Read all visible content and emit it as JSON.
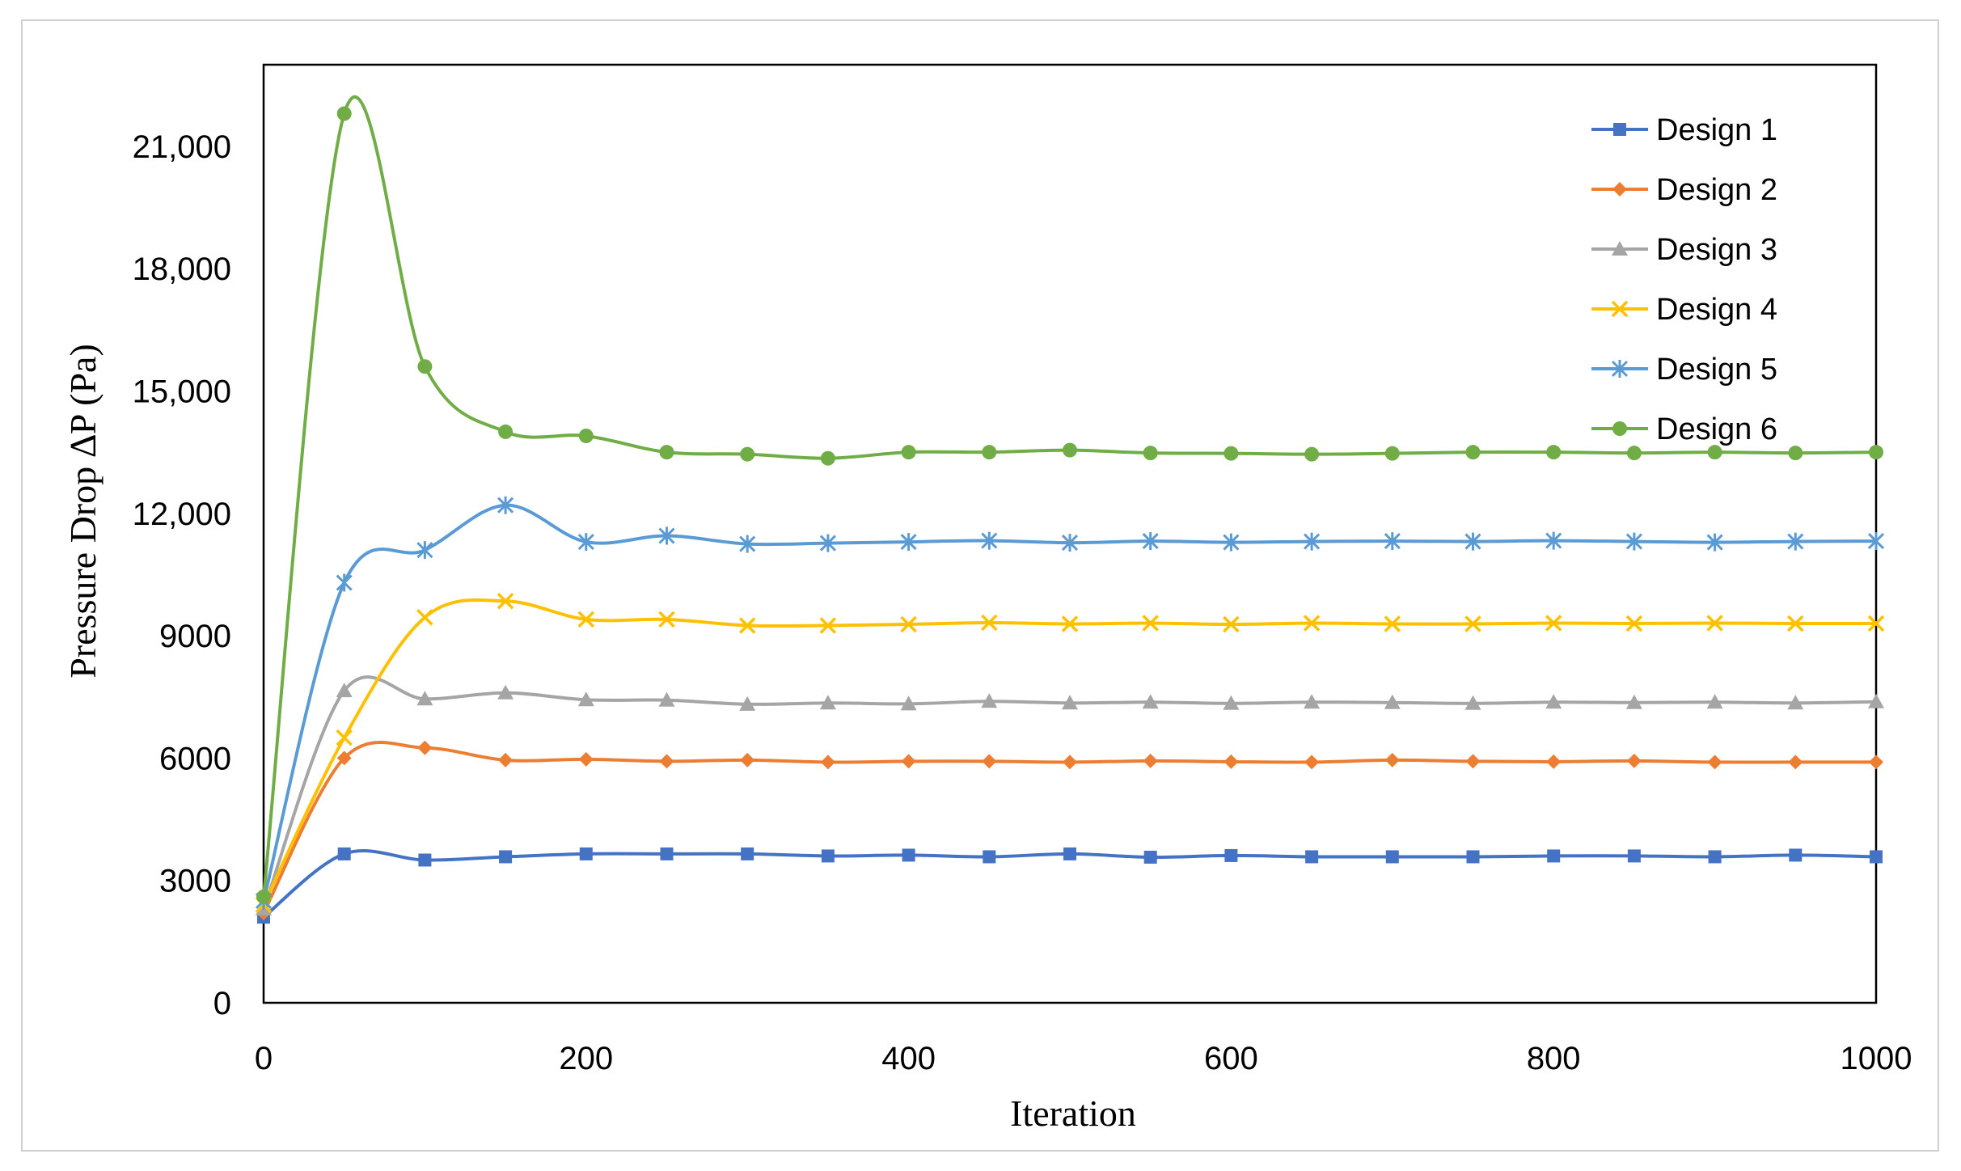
{
  "chart_data": {
    "type": "line",
    "title": "",
    "xlabel": "Iteration",
    "ylabel": "Pressure Drop ∆P (Pa)",
    "xlim": [
      0,
      1000
    ],
    "ylim": [
      0,
      23000
    ],
    "x_ticks": [
      0,
      200,
      400,
      600,
      800,
      1000
    ],
    "x_tick_labels": [
      "0",
      "200",
      "400",
      "600",
      "800",
      "1000"
    ],
    "y_ticks": [
      0,
      3000,
      6000,
      9000,
      12000,
      15000,
      18000,
      21000
    ],
    "y_tick_labels": [
      "0",
      "3000",
      "6000",
      "9000",
      "12,000",
      "15,000",
      "18,000",
      "21,000"
    ],
    "grid": false,
    "legend_position": "top-right",
    "x": [
      0,
      50,
      100,
      150,
      200,
      250,
      300,
      350,
      400,
      450,
      500,
      550,
      600,
      650,
      700,
      750,
      800,
      850,
      900,
      950,
      1000
    ],
    "series": [
      {
        "name": "Design 1",
        "color": "#4472C4",
        "marker": "square",
        "values": [
          2100,
          3650,
          3500,
          3580,
          3650,
          3650,
          3650,
          3600,
          3620,
          3580,
          3650,
          3570,
          3610,
          3580,
          3580,
          3580,
          3600,
          3600,
          3580,
          3620,
          3580
        ]
      },
      {
        "name": "Design 2",
        "color": "#ED7D31",
        "marker": "diamond",
        "values": [
          2200,
          6000,
          6250,
          5950,
          5970,
          5920,
          5950,
          5900,
          5920,
          5920,
          5900,
          5930,
          5910,
          5900,
          5950,
          5920,
          5910,
          5930,
          5900,
          5900,
          5900
        ]
      },
      {
        "name": "Design 3",
        "color": "#A5A5A5",
        "marker": "triangle",
        "values": [
          2300,
          7650,
          7450,
          7600,
          7430,
          7420,
          7320,
          7350,
          7330,
          7390,
          7350,
          7370,
          7340,
          7370,
          7360,
          7340,
          7370,
          7360,
          7370,
          7350,
          7380
        ]
      },
      {
        "name": "Design 4",
        "color": "#FFC000",
        "marker": "x",
        "values": [
          2400,
          6500,
          9450,
          9850,
          9400,
          9400,
          9250,
          9250,
          9280,
          9320,
          9290,
          9310,
          9280,
          9310,
          9290,
          9290,
          9310,
          9300,
          9310,
          9300,
          9300
        ]
      },
      {
        "name": "Design 5",
        "color": "#5B9BD5",
        "marker": "star",
        "values": [
          2500,
          10300,
          11100,
          12200,
          11300,
          11450,
          11250,
          11270,
          11300,
          11330,
          11280,
          11320,
          11290,
          11310,
          11320,
          11310,
          11330,
          11310,
          11290,
          11310,
          11320
        ]
      },
      {
        "name": "Design 6",
        "color": "#70AD47",
        "marker": "circle",
        "values": [
          2600,
          21800,
          15600,
          14000,
          13900,
          13500,
          13450,
          13350,
          13500,
          13500,
          13550,
          13480,
          13470,
          13450,
          13470,
          13500,
          13500,
          13480,
          13500,
          13480,
          13500
        ]
      }
    ]
  }
}
